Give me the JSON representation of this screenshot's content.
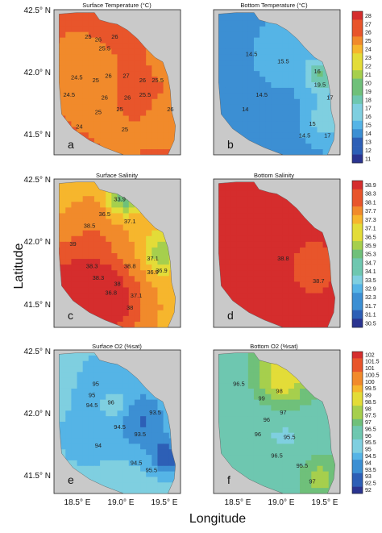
{
  "chart_data": [
    {
      "type": "heatmap",
      "id": "a",
      "title": "Surface Temperature (°C)",
      "panel_label": "a",
      "contour_labels": [
        "25",
        "26",
        "25.5",
        "26",
        "24.5",
        "25",
        "26",
        "27",
        "26",
        "25.5",
        "26",
        "25",
        "25.5",
        "25",
        "24.5",
        "25",
        "24",
        "26",
        "26"
      ],
      "base_value": 26,
      "blobs": [
        {
          "cx": 0.62,
          "cy": 0.52,
          "r": 0.22,
          "v": 1.2
        },
        {
          "cx": 0.35,
          "cy": 0.45,
          "r": 0.25,
          "v": -1.5
        },
        {
          "cx": 0.8,
          "cy": 0.4,
          "r": 0.18,
          "v": -0.7
        },
        {
          "cx": 0.45,
          "cy": 0.2,
          "r": 0.2,
          "v": 0.6
        },
        {
          "cx": 0.9,
          "cy": 0.75,
          "r": 0.15,
          "v": -1.2
        },
        {
          "cx": 0.55,
          "cy": 0.8,
          "r": 0.2,
          "v": -0.4
        }
      ]
    },
    {
      "type": "heatmap",
      "id": "b",
      "title": "Bottom Temperature (°C)",
      "panel_label": "b",
      "contour_labels": [
        "14.5",
        "15.5",
        "14.5",
        "16",
        "19.5",
        "17",
        "14",
        "15",
        "14.5",
        "17"
      ],
      "colorbar": {
        "ticks": [
          "28",
          "27",
          "26",
          "25",
          "24",
          "23",
          "22",
          "21",
          "20",
          "19",
          "18",
          "17",
          "16",
          "15",
          "14",
          "13",
          "12",
          "11"
        ],
        "min": 11,
        "max": 28
      },
      "base_value": 14.3,
      "blobs": [
        {
          "cx": 0.85,
          "cy": 0.45,
          "r": 0.12,
          "v": 4.5
        },
        {
          "cx": 0.9,
          "cy": 0.75,
          "r": 0.15,
          "v": 3.0
        },
        {
          "cx": 0.55,
          "cy": 0.3,
          "r": 0.2,
          "v": 1.0
        }
      ]
    },
    {
      "type": "heatmap",
      "id": "c",
      "title": "Surface Salinity",
      "panel_label": "c",
      "contour_labels": [
        "33.9",
        "36.5",
        "37.1",
        "38.5",
        "39",
        "37.1",
        "36.9",
        "38.3",
        "38.3",
        "38.8",
        "38",
        "36.8",
        "37.1",
        "36.9",
        "38"
      ],
      "base_value": 36.9,
      "blobs": [
        {
          "cx": 0.2,
          "cy": 0.75,
          "r": 0.35,
          "v": 2.3
        },
        {
          "cx": 0.5,
          "cy": 0.85,
          "r": 0.25,
          "v": 1.2
        },
        {
          "cx": 0.85,
          "cy": 0.5,
          "r": 0.15,
          "v": -1.5
        },
        {
          "cx": 0.55,
          "cy": 0.12,
          "r": 0.12,
          "v": -2.5
        },
        {
          "cx": 0.35,
          "cy": 0.3,
          "r": 0.2,
          "v": 0.4
        }
      ]
    },
    {
      "type": "heatmap",
      "id": "d",
      "title": "Bottom Salinity",
      "panel_label": "d",
      "contour_labels": [
        "38.8",
        "38.7"
      ],
      "colorbar": {
        "ticks": [
          "38.9",
          "38.3",
          "37.7",
          "37.1",
          "36.5",
          "35.9",
          "35.3",
          "34.7",
          "34.1",
          "33.5",
          "32.9",
          "32.3",
          "31.7",
          "31.1",
          "30.5"
        ],
        "min": 30.5,
        "max": 38.9,
        "display": [
          "38.9",
          "38.3",
          "38.1",
          "37.7",
          "37.3",
          "37.1",
          "36.5",
          "35.9",
          "35.3",
          "34.7",
          "34.1",
          "33.5",
          "32.9",
          "32.3",
          "31.7",
          "31.1",
          "30.5"
        ]
      },
      "base_value": 38.8,
      "blobs": [
        {
          "cx": 0.8,
          "cy": 0.6,
          "r": 0.25,
          "v": -0.4
        }
      ]
    },
    {
      "type": "heatmap",
      "id": "e",
      "title": "Surface O2 (%sat)",
      "panel_label": "e",
      "contour_labels": [
        "95",
        "95",
        "94.5",
        "96",
        "94.5",
        "93.5",
        "94",
        "94.5",
        "95.5",
        "93.5"
      ],
      "base_value": 95.2,
      "blobs": [
        {
          "cx": 0.7,
          "cy": 0.5,
          "r": 0.22,
          "v": -2.0
        },
        {
          "cx": 0.4,
          "cy": 0.25,
          "r": 0.2,
          "v": -1.0
        },
        {
          "cx": 0.48,
          "cy": 0.38,
          "r": 0.12,
          "v": 1.5
        },
        {
          "cx": 0.9,
          "cy": 0.75,
          "r": 0.12,
          "v": -2.5
        },
        {
          "cx": 0.25,
          "cy": 0.6,
          "r": 0.2,
          "v": -0.8
        }
      ]
    },
    {
      "type": "heatmap",
      "id": "f",
      "title": "Bottom O2 (%sat)",
      "panel_label": "f",
      "contour_labels": [
        "96.5",
        "99",
        "98",
        "97",
        "96",
        "96",
        "95.5",
        "95.5",
        "96.5",
        "97"
      ],
      "colorbar": {
        "ticks": [
          "102",
          "101.5",
          "101",
          "100.5",
          "100",
          "99.5",
          "99",
          "98.5",
          "98",
          "97.5",
          "97",
          "96.5",
          "96",
          "95.5",
          "95",
          "94.5",
          "94",
          "93.5",
          "93",
          "92.5",
          "92"
        ],
        "min": 92,
        "max": 102
      },
      "base_value": 96.3,
      "blobs": [
        {
          "cx": 0.55,
          "cy": 0.18,
          "r": 0.2,
          "v": 2.8
        },
        {
          "cx": 0.85,
          "cy": 0.9,
          "r": 0.15,
          "v": 1.5
        },
        {
          "cx": 0.3,
          "cy": 0.5,
          "r": 0.2,
          "v": -0.5
        },
        {
          "cx": 0.6,
          "cy": 0.6,
          "r": 0.2,
          "v": -0.6
        }
      ]
    }
  ],
  "axes": {
    "ylabel": "Latitude",
    "xlabel": "Longitude",
    "lat_ticks": [
      "42.5° N",
      "42.0° N",
      "41.5° N"
    ],
    "lon_ticks": [
      "18.5° E",
      "19.0° E",
      "19.5° E"
    ]
  }
}
